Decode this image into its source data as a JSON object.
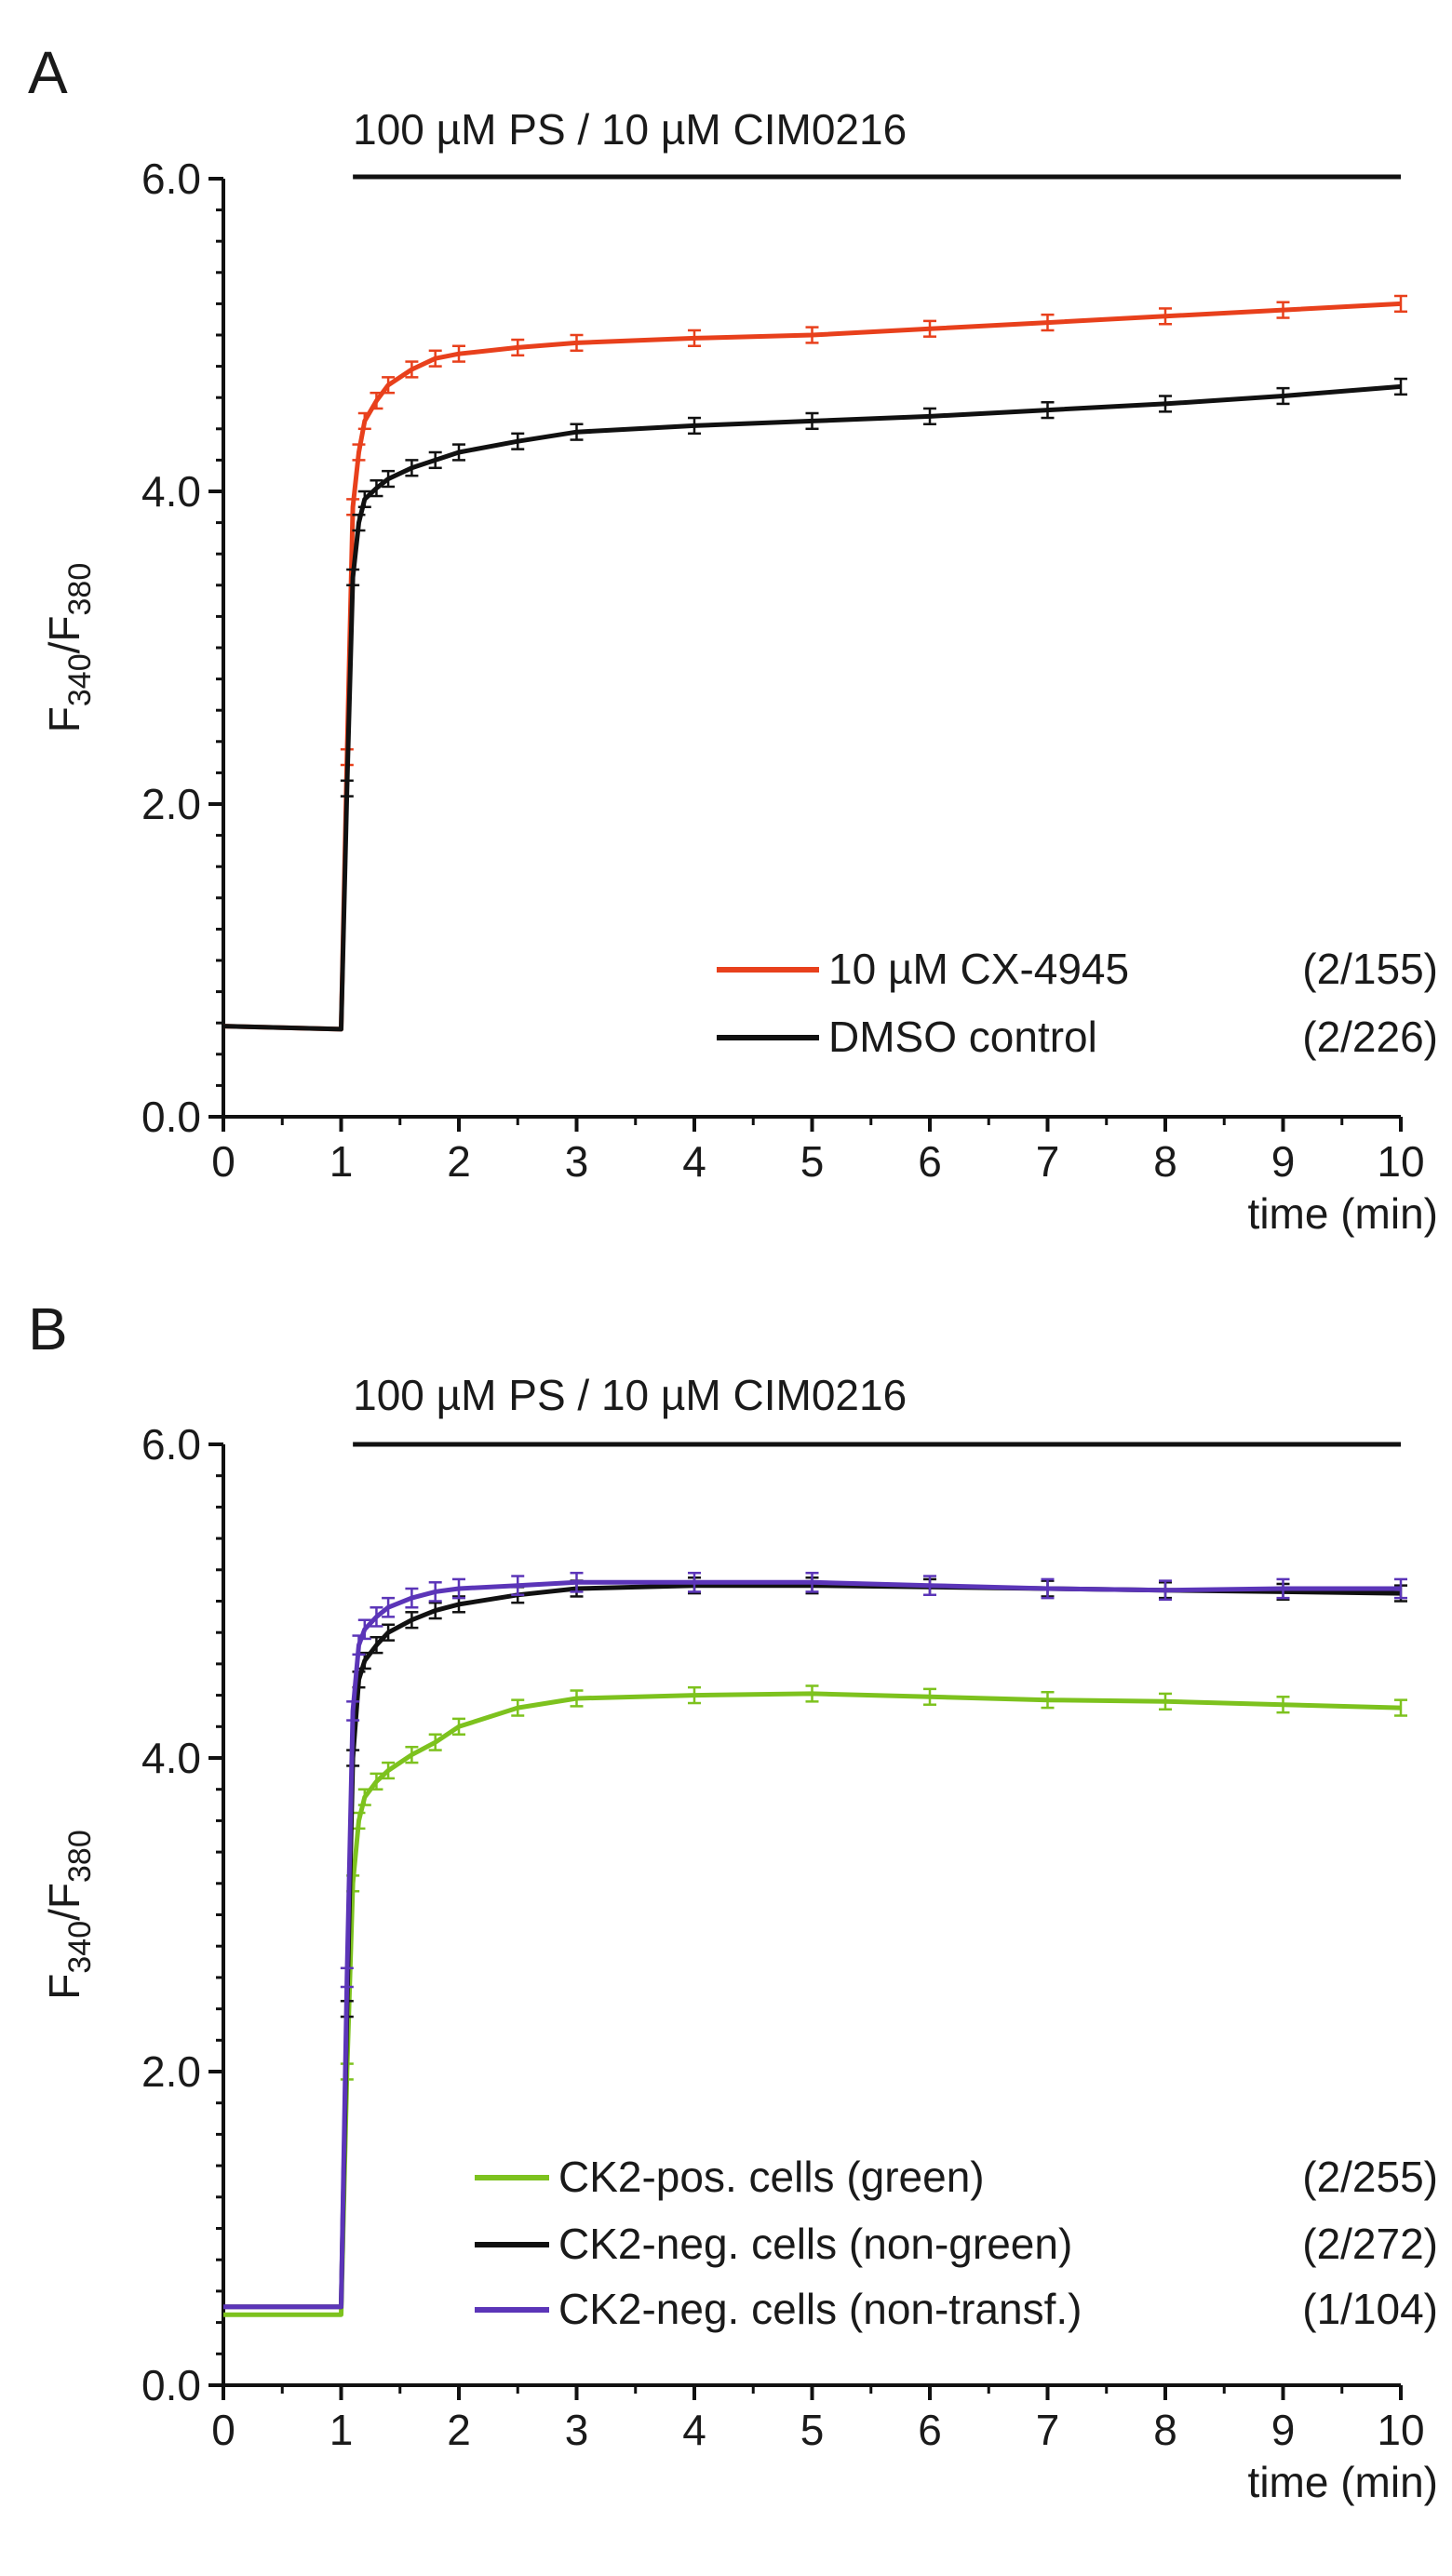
{
  "figure": {
    "panels": [
      "A",
      "B"
    ]
  },
  "chart_data": [
    {
      "panel": "A",
      "type": "line",
      "title": "",
      "treatment_bar_label": "100 µM PS / 10 µM CIM0216",
      "treatment_start_min": 1.1,
      "treatment_end_min": 10,
      "xlabel": "time (min)",
      "ylabel_main": "F",
      "ylabel_sub1": "340",
      "ylabel_mid": "/F",
      "ylabel_sub2": "380",
      "xlim": [
        0,
        10
      ],
      "ylim": [
        0,
        6
      ],
      "xticks": [
        "0",
        "1",
        "2",
        "3",
        "4",
        "5",
        "6",
        "7",
        "8",
        "9",
        "10"
      ],
      "yticks": [
        "0.0",
        "2.0",
        "4.0",
        "6.0"
      ],
      "legend_position": "bottom-right",
      "series": [
        {
          "name": "10 µM CX-4945",
          "count": "(2/155)",
          "color": "#e8401c",
          "x": [
            0,
            0.5,
            1.0,
            1.05,
            1.1,
            1.15,
            1.2,
            1.3,
            1.4,
            1.6,
            1.8,
            2.0,
            2.5,
            3.0,
            4.0,
            5.0,
            6.0,
            7.0,
            8.0,
            9.0,
            10.0
          ],
          "y": [
            0.58,
            0.57,
            0.56,
            2.3,
            3.9,
            4.25,
            4.45,
            4.58,
            4.68,
            4.78,
            4.85,
            4.88,
            4.92,
            4.95,
            4.98,
            5.0,
            5.04,
            5.08,
            5.12,
            5.16,
            5.2
          ],
          "err": 0.05
        },
        {
          "name": "DMSO control",
          "count": "(2/226)",
          "color": "#111111",
          "x": [
            0,
            0.5,
            1.0,
            1.05,
            1.1,
            1.15,
            1.2,
            1.3,
            1.4,
            1.6,
            1.8,
            2.0,
            2.5,
            3.0,
            4.0,
            5.0,
            6.0,
            7.0,
            8.0,
            9.0,
            10.0
          ],
          "y": [
            0.58,
            0.57,
            0.56,
            2.1,
            3.45,
            3.8,
            3.95,
            4.02,
            4.08,
            4.15,
            4.2,
            4.25,
            4.32,
            4.38,
            4.42,
            4.45,
            4.48,
            4.52,
            4.56,
            4.61,
            4.67
          ],
          "err": 0.05
        }
      ]
    },
    {
      "panel": "B",
      "type": "line",
      "title": "",
      "treatment_bar_label": "100 µM PS / 10 µM CIM0216",
      "treatment_start_min": 1.1,
      "treatment_end_min": 10,
      "xlabel": "time (min)",
      "ylabel_main": "F",
      "ylabel_sub1": "340",
      "ylabel_mid": "/F",
      "ylabel_sub2": "380",
      "xlim": [
        0,
        10
      ],
      "ylim": [
        0,
        6
      ],
      "xticks": [
        "0",
        "1",
        "2",
        "3",
        "4",
        "5",
        "6",
        "7",
        "8",
        "9",
        "10"
      ],
      "yticks": [
        "0.0",
        "2.0",
        "4.0",
        "6.0"
      ],
      "legend_position": "bottom-right",
      "series": [
        {
          "name": "CK2-pos. cells (green)",
          "count": "(2/255)",
          "color": "#7dc21e",
          "x": [
            0,
            0.5,
            1.0,
            1.05,
            1.1,
            1.15,
            1.2,
            1.3,
            1.4,
            1.6,
            1.8,
            2.0,
            2.5,
            3.0,
            4.0,
            5.0,
            6.0,
            7.0,
            8.0,
            9.0,
            10.0
          ],
          "y": [
            0.45,
            0.45,
            0.45,
            2.0,
            3.2,
            3.6,
            3.75,
            3.85,
            3.92,
            4.02,
            4.1,
            4.2,
            4.32,
            4.38,
            4.4,
            4.41,
            4.39,
            4.37,
            4.36,
            4.34,
            4.32
          ],
          "err": 0.05
        },
        {
          "name": "CK2-neg. cells (non-green)",
          "count": "(2/272)",
          "color": "#111111",
          "x": [
            0,
            0.5,
            1.0,
            1.05,
            1.1,
            1.15,
            1.2,
            1.3,
            1.4,
            1.6,
            1.8,
            2.0,
            2.5,
            3.0,
            4.0,
            5.0,
            6.0,
            7.0,
            8.0,
            9.0,
            10.0
          ],
          "y": [
            0.5,
            0.5,
            0.5,
            2.4,
            4.0,
            4.5,
            4.62,
            4.72,
            4.8,
            4.88,
            4.94,
            4.98,
            5.04,
            5.08,
            5.1,
            5.1,
            5.09,
            5.08,
            5.07,
            5.06,
            5.05
          ],
          "err": 0.05
        },
        {
          "name": "CK2-neg. cells (non-transf.)",
          "count": "(1/104)",
          "color": "#5b35b8",
          "x": [
            0,
            0.5,
            1.0,
            1.05,
            1.1,
            1.15,
            1.2,
            1.3,
            1.4,
            1.6,
            1.8,
            2.0,
            2.5,
            3.0,
            4.0,
            5.0,
            6.0,
            7.0,
            8.0,
            9.0,
            10.0
          ],
          "y": [
            0.5,
            0.5,
            0.5,
            2.6,
            4.3,
            4.72,
            4.82,
            4.9,
            4.96,
            5.02,
            5.06,
            5.08,
            5.1,
            5.12,
            5.12,
            5.12,
            5.1,
            5.08,
            5.07,
            5.08,
            5.08
          ],
          "err": 0.06
        }
      ]
    }
  ]
}
